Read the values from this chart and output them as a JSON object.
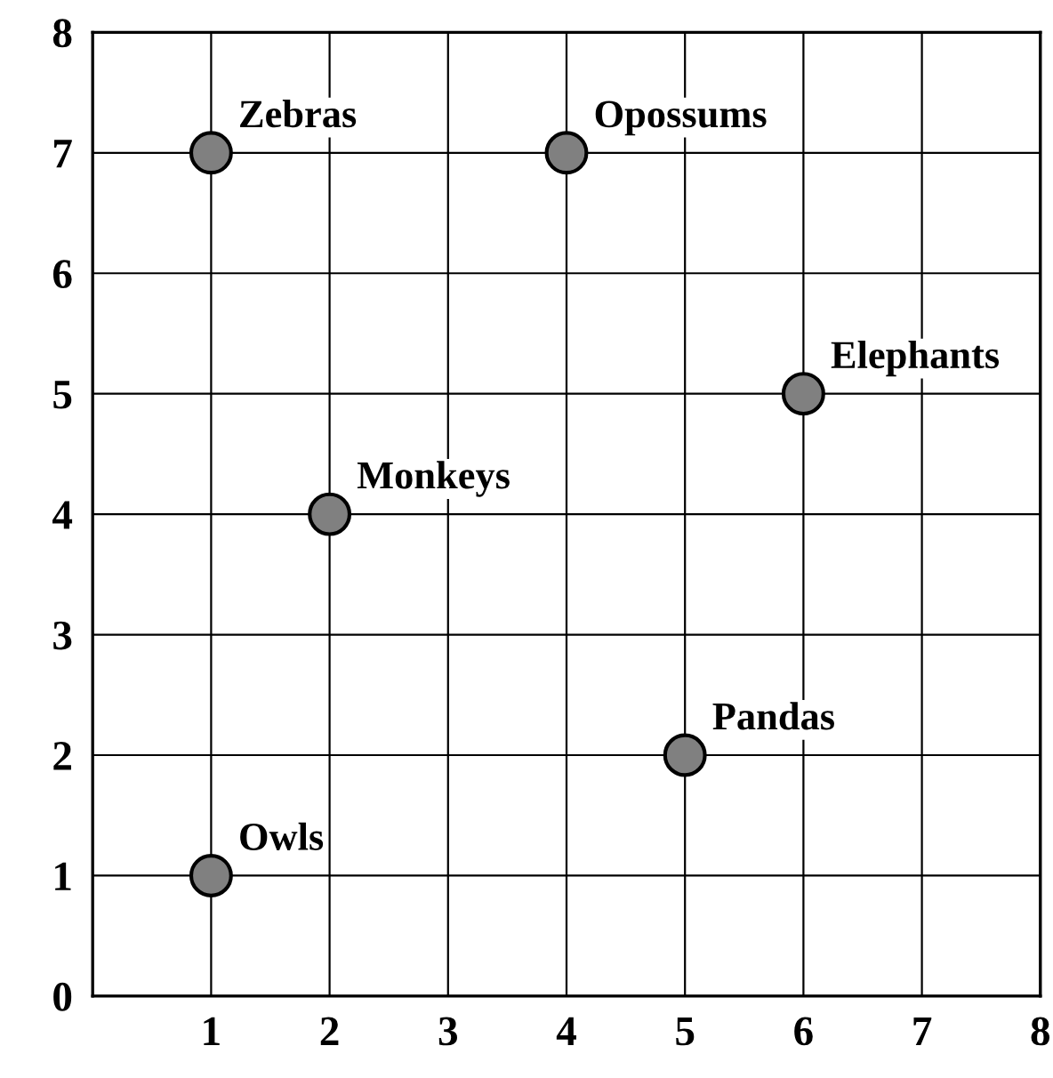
{
  "chart_data": {
    "type": "scatter",
    "x": [
      1,
      4,
      6,
      2,
      5,
      1
    ],
    "values": [
      7,
      7,
      5,
      4,
      2,
      1
    ],
    "color": "#808080",
    "marker": "circle",
    "xlim": [
      0,
      8
    ],
    "ylim": [
      0,
      8
    ],
    "xticks": [
      1,
      2,
      3,
      4,
      5,
      6,
      7,
      8
    ],
    "yticks": [
      0,
      1,
      2,
      3,
      4,
      5,
      6,
      7,
      8
    ],
    "grid": true,
    "annotations": [
      {
        "text": "Zebras",
        "x": 1,
        "y": 7
      },
      {
        "text": "Opossums",
        "x": 4,
        "y": 7
      },
      {
        "text": "Elephants",
        "x": 6,
        "y": 5
      },
      {
        "text": "Monkeys",
        "x": 2,
        "y": 4
      },
      {
        "text": "Pandas",
        "x": 5,
        "y": 2
      },
      {
        "text": "Owls",
        "x": 1,
        "y": 1
      }
    ]
  }
}
